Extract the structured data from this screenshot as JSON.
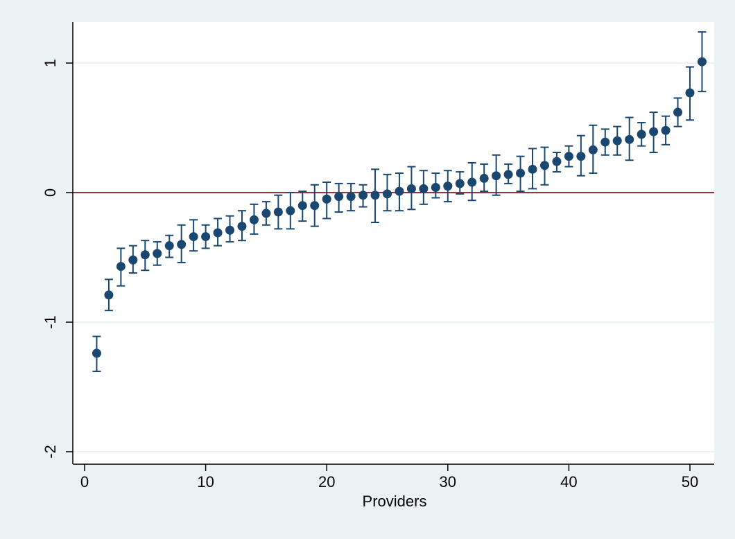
{
  "chart_data": {
    "type": "scatter",
    "title": "",
    "xlabel": "Providers",
    "ylabel": "",
    "xlim": [
      0,
      52
    ],
    "ylim": [
      -2.05,
      1.3
    ],
    "xticks": [
      0,
      10,
      20,
      30,
      40,
      50
    ],
    "yticks": [
      -2,
      -1,
      0,
      1
    ],
    "xtick_labels": [
      "0",
      "10",
      "20",
      "30",
      "40",
      "50"
    ],
    "ytick_labels": [
      "-2",
      "-1",
      "0",
      "1"
    ],
    "grid": "horizontal",
    "reference_line": 0,
    "legend": "none",
    "colors": {
      "background": "#eaf2f3",
      "plot_area": "#ffffff",
      "gridline": "#eaf2f3",
      "marker": "#1a476f",
      "errorbar": "#1a476f",
      "reference_line": "#90353b"
    },
    "series": [
      {
        "x": [
          1,
          2,
          3,
          4,
          5,
          6,
          7,
          8,
          9,
          10,
          11,
          12,
          13,
          14,
          15,
          16,
          17,
          18,
          19,
          20,
          21,
          22,
          23,
          24,
          25,
          26,
          27,
          28,
          29,
          30,
          31,
          32,
          33,
          34,
          35,
          36,
          37,
          38,
          39,
          40,
          41,
          42,
          43,
          44,
          45,
          46,
          47,
          48,
          49,
          50,
          51
        ],
        "y": [
          -1.24,
          -0.79,
          -0.57,
          -0.52,
          -0.48,
          -0.47,
          -0.41,
          -0.4,
          -0.34,
          -0.34,
          -0.31,
          -0.29,
          -0.26,
          -0.21,
          -0.16,
          -0.15,
          -0.14,
          -0.1,
          -0.1,
          -0.05,
          -0.03,
          -0.03,
          -0.02,
          -0.02,
          -0.01,
          0.01,
          0.03,
          0.03,
          0.04,
          0.05,
          0.07,
          0.08,
          0.11,
          0.13,
          0.14,
          0.15,
          0.18,
          0.21,
          0.24,
          0.28,
          0.28,
          0.33,
          0.39,
          0.4,
          0.41,
          0.45,
          0.47,
          0.48,
          0.62,
          0.77,
          1.01
        ],
        "lower": [
          -1.38,
          -0.91,
          -0.72,
          -0.62,
          -0.6,
          -0.56,
          -0.5,
          -0.54,
          -0.45,
          -0.43,
          -0.41,
          -0.38,
          -0.37,
          -0.32,
          -0.25,
          -0.28,
          -0.28,
          -0.22,
          -0.26,
          -0.2,
          -0.15,
          -0.14,
          -0.11,
          -0.23,
          -0.14,
          -0.14,
          -0.13,
          -0.09,
          -0.04,
          -0.07,
          -0.01,
          -0.06,
          0.01,
          -0.02,
          0.07,
          0.01,
          0.03,
          0.06,
          0.16,
          0.2,
          0.13,
          0.15,
          0.29,
          0.29,
          0.25,
          0.36,
          0.31,
          0.37,
          0.51,
          0.56,
          0.78
        ],
        "upper": [
          -1.11,
          -0.67,
          -0.43,
          -0.41,
          -0.37,
          -0.38,
          -0.33,
          -0.25,
          -0.21,
          -0.25,
          -0.2,
          -0.18,
          -0.14,
          -0.09,
          -0.07,
          -0.02,
          0.0,
          0.01,
          0.06,
          0.08,
          0.07,
          0.07,
          0.06,
          0.18,
          0.14,
          0.15,
          0.2,
          0.17,
          0.15,
          0.17,
          0.16,
          0.23,
          0.22,
          0.29,
          0.22,
          0.28,
          0.34,
          0.35,
          0.31,
          0.36,
          0.44,
          0.52,
          0.49,
          0.51,
          0.58,
          0.54,
          0.62,
          0.59,
          0.73,
          0.97,
          1.24
        ]
      }
    ]
  }
}
